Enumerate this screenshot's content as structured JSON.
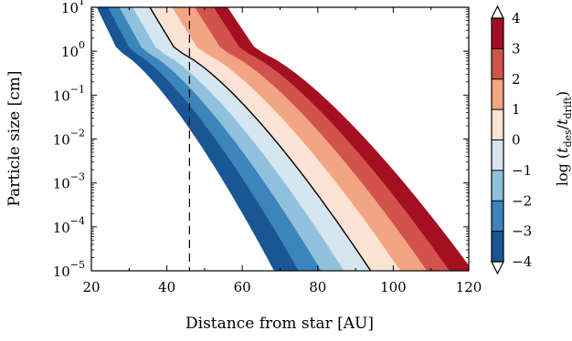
{
  "chart_data": {
    "type": "contourf",
    "xlabel": "Distance from star [AU]",
    "ylabel": "Particle size [cm]",
    "xlim": [
      20,
      120
    ],
    "ylim_log10": [
      -5,
      1
    ],
    "y_scale": "log",
    "x_ticks": [
      "20",
      "40",
      "60",
      "80",
      "100",
      "120"
    ],
    "y_ticks": [
      "10",
      "10",
      "10",
      "10",
      "10",
      "10",
      "10"
    ],
    "y_tick_exponents": [
      "−5",
      "−4",
      "−3",
      "−2",
      "−1",
      "0",
      "1"
    ],
    "dashed_line_x": 46,
    "colorbar": {
      "label": "log (t_des/t_drift)",
      "label_parts": {
        "prefix": "log (",
        "num_main": "t",
        "num_sub": "des",
        "slash": "/",
        "den_main": "t",
        "den_sub": "drift",
        "suffix": ")"
      },
      "levels": [
        -4,
        -3,
        -2,
        -1,
        0,
        1,
        2,
        3,
        4
      ],
      "tick_labels": [
        "−4",
        "−3",
        "−2",
        "−1",
        "0",
        "1",
        "2",
        "3",
        "4"
      ],
      "extend": "both",
      "colors": [
        "#1a5595",
        "#3b84bc",
        "#8fc1dc",
        "#d6e6f0",
        "#fce3d4",
        "#f3a482",
        "#d1534c",
        "#a50f22"
      ],
      "under_color": "#ffffff",
      "over_color": "#ffffff"
    },
    "contour_edges": [
      {
        "level": -4,
        "x_at_top": 21.5,
        "x_at_bottom": 68.5
      },
      {
        "level": -3,
        "x_at_top": 24.5,
        "x_at_bottom": 75
      },
      {
        "level": -2,
        "x_at_top": 27.5,
        "x_at_bottom": 81
      },
      {
        "level": -1,
        "x_at_top": 31,
        "x_at_bottom": 87
      },
      {
        "level": 0,
        "x_at_top": 35.5,
        "x_at_bottom": 94
      },
      {
        "level": 1,
        "x_at_top": 41.5,
        "x_at_bottom": 102
      },
      {
        "level": 2,
        "x_at_top": 47.5,
        "x_at_bottom": 109
      },
      {
        "level": 3,
        "x_at_top": 52.5,
        "x_at_bottom": 115
      },
      {
        "level": 4,
        "x_at_top": 56,
        "x_at_bottom": 121
      }
    ],
    "highlighted_contour_level": 0
  }
}
